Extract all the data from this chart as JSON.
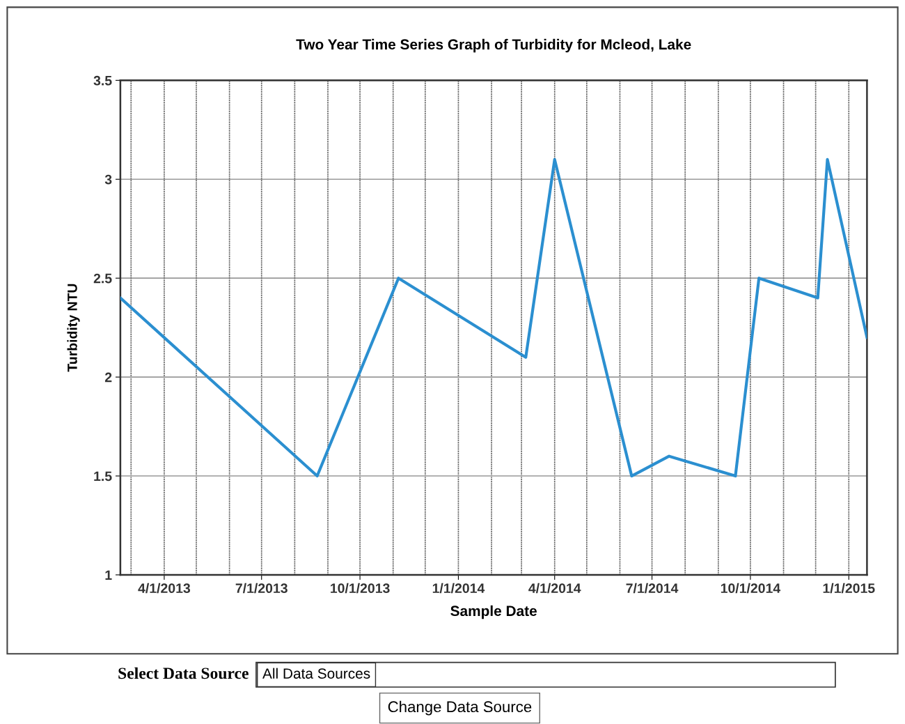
{
  "chart_data": {
    "type": "line",
    "title": "Two Year Time Series Graph of Turbidity for Mcleod, Lake",
    "xlabel": "Sample Date",
    "ylabel": "Turbidity NTU",
    "x": [
      "2013-02-19",
      "2013-08-22",
      "2013-11-06",
      "2014-03-05",
      "2014-04-01",
      "2014-06-12",
      "2014-07-17",
      "2014-09-17",
      "2014-10-09",
      "2014-12-03",
      "2014-12-12",
      "2015-01-18"
    ],
    "series": [
      {
        "color": "#2b8fd0",
        "values": [
          2.4,
          1.5,
          2.5,
          2.1,
          3.1,
          1.5,
          1.6,
          1.5,
          2.5,
          2.4,
          3.1,
          2.2
        ]
      }
    ],
    "xlim": [
      "2013-02-19",
      "2015-01-18"
    ],
    "xticks": [
      {
        "value": "2013-04-01",
        "label": "4/1/2013"
      },
      {
        "value": "2013-07-01",
        "label": "7/1/2013"
      },
      {
        "value": "2013-10-01",
        "label": "10/1/2013"
      },
      {
        "value": "2014-01-01",
        "label": "1/1/2014"
      },
      {
        "value": "2014-04-01",
        "label": "4/1/2014"
      },
      {
        "value": "2014-07-01",
        "label": "7/1/2014"
      },
      {
        "value": "2014-10-01",
        "label": "10/1/2014"
      },
      {
        "value": "2015-01-01",
        "label": "1/1/2015"
      }
    ],
    "ylim": [
      1,
      3.5
    ],
    "yticks": [
      1,
      1.5,
      2,
      2.5,
      3,
      3.5
    ],
    "grid": true,
    "marker": "none",
    "line_style": "solid",
    "annotations": [
      "Select Data Source",
      "All Data Sources",
      "Change Data Source"
    ]
  }
}
